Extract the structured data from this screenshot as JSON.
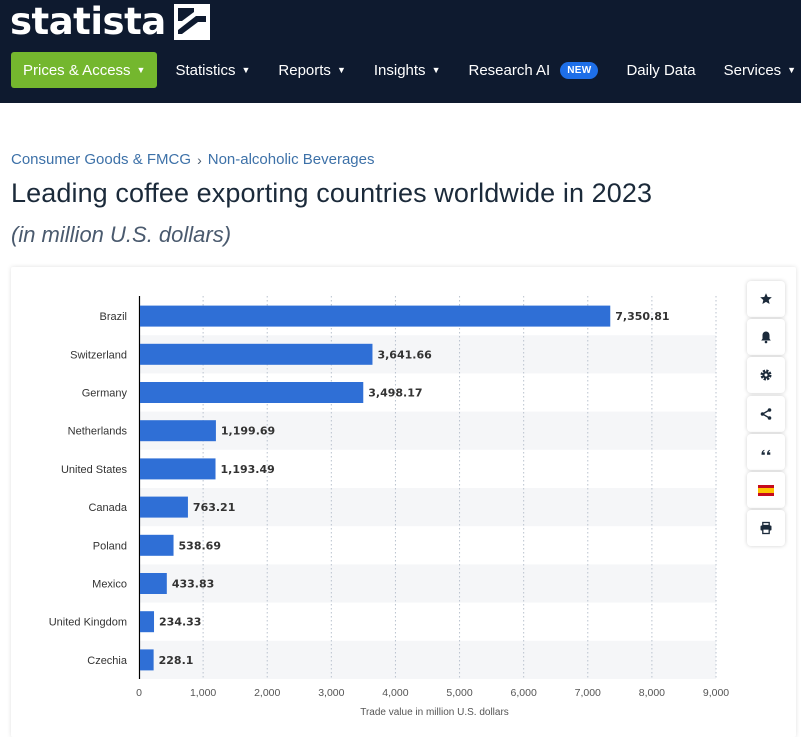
{
  "header": {
    "logo_text": "statista",
    "nav": [
      {
        "label": "Prices & Access",
        "caret": true,
        "primary": true
      },
      {
        "label": "Statistics",
        "caret": true
      },
      {
        "label": "Reports",
        "caret": true
      },
      {
        "label": "Insights",
        "caret": true
      },
      {
        "label": "Research AI",
        "badge": "NEW"
      },
      {
        "label": "Daily Data"
      },
      {
        "label": "Services",
        "caret": true
      }
    ]
  },
  "breadcrumb": {
    "items": [
      "Consumer Goods & FMCG",
      "Non-alcoholic Beverages"
    ],
    "separator": "›"
  },
  "title": "Leading coffee exporting countries worldwide in 2023",
  "subtitle": "(in million U.S. dollars)",
  "colors": {
    "bar": "#2f6fd6",
    "header_bg": "#0e1a2f",
    "accent_green": "#74b72e",
    "badge_blue": "#1e6fe8"
  },
  "toolbar": {
    "icons": [
      "star-icon",
      "bell-icon",
      "gear-icon",
      "share-icon",
      "quote-icon",
      "spain-flag-icon",
      "print-icon"
    ]
  },
  "chart_data": {
    "type": "bar",
    "orientation": "horizontal",
    "categories": [
      "Brazil",
      "Switzerland",
      "Germany",
      "Netherlands",
      "United States",
      "Canada",
      "Poland",
      "Mexico",
      "United Kingdom",
      "Czechia"
    ],
    "values": [
      7350.81,
      3641.66,
      3498.17,
      1199.69,
      1193.49,
      763.21,
      538.69,
      433.83,
      234.33,
      228.1
    ],
    "value_labels": [
      "7,350.81",
      "3,641.66",
      "3,498.17",
      "1,199.69",
      "1,193.49",
      "763.21",
      "538.69",
      "433.83",
      "234.33",
      "228.1"
    ],
    "xlabel": "Trade value in million U.S. dollars",
    "ylabel": "",
    "xlim": [
      0,
      9000
    ],
    "xticks": [
      0,
      1000,
      2000,
      3000,
      4000,
      5000,
      6000,
      7000,
      8000,
      9000
    ],
    "xtick_labels": [
      "0",
      "1,000",
      "2,000",
      "3,000",
      "4,000",
      "5,000",
      "6,000",
      "7,000",
      "8,000",
      "9,000"
    ],
    "grid": true
  }
}
